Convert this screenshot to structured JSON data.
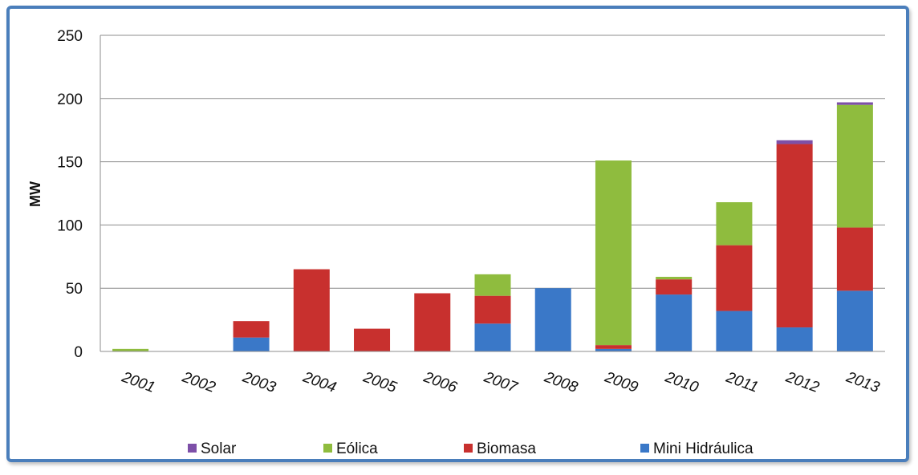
{
  "chart_data": {
    "type": "bar",
    "stacked": true,
    "categories": [
      "2001",
      "2002",
      "2003",
      "2004",
      "2005",
      "2006",
      "2007",
      "2008",
      "2009",
      "2010",
      "2011",
      "2012",
      "2013"
    ],
    "series": [
      {
        "name": "Mini Hidráulica",
        "color": "#3a78c8",
        "values": [
          0,
          0,
          11,
          0,
          0,
          0,
          22,
          50,
          2,
          45,
          32,
          19,
          48
        ]
      },
      {
        "name": "Biomasa",
        "color": "#c8302e",
        "values": [
          0,
          0,
          13,
          65,
          18,
          46,
          22,
          0,
          3,
          12,
          52,
          145,
          50
        ]
      },
      {
        "name": "Eólica",
        "color": "#8fbc3e",
        "values": [
          2,
          0,
          0,
          0,
          0,
          0,
          17,
          0,
          146,
          2,
          34,
          0,
          97
        ]
      },
      {
        "name": "Solar",
        "color": "#7d4fa8",
        "values": [
          0,
          0,
          0,
          0,
          0,
          0,
          0,
          0,
          0,
          0,
          0,
          3,
          2
        ]
      }
    ],
    "legend_order": [
      "Solar",
      "Eólica",
      "Biomasa",
      "Mini Hidráulica"
    ],
    "ylabel": "MW",
    "xlabel": "",
    "ylim": [
      0,
      250
    ],
    "yticks": [
      0,
      50,
      100,
      150,
      200,
      250
    ],
    "grid": true,
    "legend_position": "bottom"
  }
}
